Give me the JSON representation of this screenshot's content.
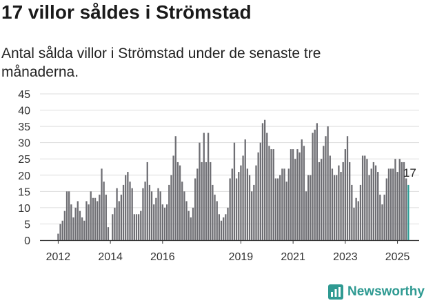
{
  "header": {
    "title": "17 villor såldes i Strömstad",
    "subtitle": "Antal sålda villor i Strömstad under de senaste tre månaderna."
  },
  "brand": {
    "name": "Newsworthy",
    "icon": "bar-chart-logo-icon"
  },
  "colors": {
    "bar": "#6e6e73",
    "highlight": "#2a9d96",
    "grid": "#dddddd",
    "axis": "#333333",
    "brand": "#2f9a92"
  },
  "chart_data": {
    "type": "bar",
    "title": "17 villor såldes i Strömstad",
    "subtitle": "Antal sålda villor i Strömstad under de senaste tre månaderna.",
    "xlabel": "",
    "ylabel": "",
    "ylim": [
      0,
      45
    ],
    "yticks": [
      0,
      5,
      10,
      15,
      20,
      25,
      30,
      35,
      40,
      45
    ],
    "xticks": [
      "2012",
      "2014",
      "2016",
      "2019",
      "2021",
      "2023",
      "2025"
    ],
    "grid": true,
    "start": "2012-01",
    "frequency": "monthly",
    "annotation": {
      "text": "17",
      "value": 17
    },
    "values": [
      2,
      5,
      6,
      9,
      15,
      15,
      11,
      7,
      10,
      12,
      9,
      7,
      6,
      12,
      11,
      15,
      13,
      13,
      12,
      14,
      22,
      18,
      14,
      4,
      0,
      8,
      10,
      16,
      12,
      14,
      17,
      20,
      21,
      18,
      16,
      8,
      8,
      8,
      9,
      16,
      18,
      24,
      17,
      15,
      11,
      13,
      16,
      15,
      11,
      10,
      11,
      17,
      20,
      26,
      32,
      24,
      23,
      18,
      15,
      12,
      9,
      7,
      10,
      19,
      22,
      30,
      24,
      33,
      24,
      33,
      24,
      17,
      14,
      12,
      8,
      6,
      7,
      8,
      10,
      19,
      22,
      30,
      19,
      21,
      23,
      26,
      31,
      22,
      20,
      15,
      17,
      23,
      27,
      30,
      36,
      37,
      33,
      29,
      28,
      28,
      19,
      19,
      20,
      22,
      22,
      18,
      22,
      28,
      28,
      25,
      28,
      27,
      31,
      29,
      15,
      20,
      20,
      33,
      34,
      36,
      24,
      25,
      29,
      32,
      35,
      26,
      22,
      20,
      20,
      23,
      21,
      24,
      28,
      32,
      24,
      17,
      10,
      13,
      12,
      17,
      26,
      26,
      25,
      20,
      22,
      24,
      23,
      21,
      14,
      11,
      14,
      19,
      22,
      22,
      22,
      25,
      21,
      25,
      24,
      24,
      19,
      17
    ]
  }
}
